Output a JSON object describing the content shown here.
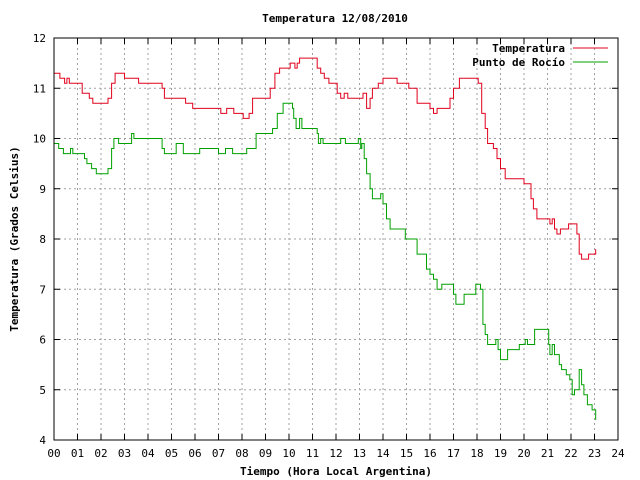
{
  "chart_data": {
    "type": "line",
    "title": "Temperatura 12/08/2010",
    "xlabel": "Tiempo (Hora Local Argentina)",
    "ylabel": "Temperatura (Grados Celsius)",
    "xlim": [
      0,
      24
    ],
    "ylim": [
      4,
      12
    ],
    "x_ticks": [
      "00",
      "01",
      "02",
      "03",
      "04",
      "05",
      "06",
      "07",
      "08",
      "09",
      "10",
      "11",
      "12",
      "13",
      "14",
      "15",
      "16",
      "17",
      "18",
      "19",
      "20",
      "21",
      "22",
      "23",
      "24"
    ],
    "y_ticks": [
      "4",
      "5",
      "6",
      "7",
      "8",
      "9",
      "10",
      "11",
      "12"
    ],
    "grid": true,
    "legend_position": "top-right",
    "colors": {
      "temperature": "#e0001b",
      "dew_point": "#00a000",
      "grid": "#a0a0a0"
    },
    "series": [
      {
        "name": "Temperatura",
        "points": [
          [
            0,
            11.3
          ],
          [
            0.15,
            11.3
          ],
          [
            0.25,
            11.2
          ],
          [
            0.35,
            11.2
          ],
          [
            0.45,
            11.1
          ],
          [
            0.55,
            11.2
          ],
          [
            0.65,
            11.1
          ],
          [
            1.0,
            11.1
          ],
          [
            1.1,
            11.1
          ],
          [
            1.2,
            10.9
          ],
          [
            1.35,
            10.9
          ],
          [
            1.5,
            10.8
          ],
          [
            1.65,
            10.7
          ],
          [
            2.2,
            10.7
          ],
          [
            2.3,
            10.8
          ],
          [
            2.45,
            11.1
          ],
          [
            2.6,
            11.3
          ],
          [
            2.8,
            11.3
          ],
          [
            3.0,
            11.2
          ],
          [
            3.3,
            11.2
          ],
          [
            3.6,
            11.1
          ],
          [
            4.0,
            11.1
          ],
          [
            4.5,
            11.1
          ],
          [
            4.6,
            11.0
          ],
          [
            4.7,
            10.8
          ],
          [
            5.0,
            10.8
          ],
          [
            5.4,
            10.8
          ],
          [
            5.6,
            10.7
          ],
          [
            5.9,
            10.6
          ],
          [
            6.3,
            10.6
          ],
          [
            6.6,
            10.6
          ],
          [
            6.8,
            10.6
          ],
          [
            7.0,
            10.6
          ],
          [
            7.1,
            10.5
          ],
          [
            7.25,
            10.5
          ],
          [
            7.35,
            10.6
          ],
          [
            7.55,
            10.6
          ],
          [
            7.65,
            10.5
          ],
          [
            7.9,
            10.5
          ],
          [
            8.05,
            10.4
          ],
          [
            8.15,
            10.4
          ],
          [
            8.3,
            10.5
          ],
          [
            8.45,
            10.8
          ],
          [
            8.8,
            10.8
          ],
          [
            9.05,
            10.8
          ],
          [
            9.2,
            11.0
          ],
          [
            9.4,
            11.3
          ],
          [
            9.6,
            11.4
          ],
          [
            9.85,
            11.4
          ],
          [
            10.05,
            11.5
          ],
          [
            10.15,
            11.5
          ],
          [
            10.25,
            11.4
          ],
          [
            10.35,
            11.5
          ],
          [
            10.45,
            11.6
          ],
          [
            10.7,
            11.6
          ],
          [
            11.0,
            11.6
          ],
          [
            11.2,
            11.4
          ],
          [
            11.35,
            11.3
          ],
          [
            11.5,
            11.2
          ],
          [
            11.7,
            11.1
          ],
          [
            11.95,
            11.1
          ],
          [
            12.05,
            10.9
          ],
          [
            12.2,
            10.8
          ],
          [
            12.35,
            10.9
          ],
          [
            12.5,
            10.8
          ],
          [
            12.8,
            10.8
          ],
          [
            13.05,
            10.8
          ],
          [
            13.15,
            10.9
          ],
          [
            13.3,
            10.6
          ],
          [
            13.45,
            10.8
          ],
          [
            13.55,
            11.0
          ],
          [
            13.8,
            11.1
          ],
          [
            14.0,
            11.2
          ],
          [
            14.45,
            11.2
          ],
          [
            14.6,
            11.1
          ],
          [
            14.9,
            11.1
          ],
          [
            15.1,
            11.0
          ],
          [
            15.3,
            11.0
          ],
          [
            15.45,
            10.7
          ],
          [
            15.9,
            10.7
          ],
          [
            16.0,
            10.6
          ],
          [
            16.15,
            10.5
          ],
          [
            16.3,
            10.6
          ],
          [
            16.7,
            10.6
          ],
          [
            16.85,
            10.8
          ],
          [
            17.0,
            11.0
          ],
          [
            17.15,
            11.0
          ],
          [
            17.25,
            11.2
          ],
          [
            17.9,
            11.2
          ],
          [
            18.05,
            11.1
          ],
          [
            18.2,
            10.5
          ],
          [
            18.35,
            10.2
          ],
          [
            18.45,
            9.9
          ],
          [
            18.7,
            9.8
          ],
          [
            18.85,
            9.6
          ],
          [
            19.0,
            9.4
          ],
          [
            19.2,
            9.2
          ],
          [
            19.9,
            9.2
          ],
          [
            20.0,
            9.1
          ],
          [
            20.15,
            9.1
          ],
          [
            20.3,
            8.8
          ],
          [
            20.4,
            8.6
          ],
          [
            20.55,
            8.4
          ],
          [
            20.8,
            8.4
          ],
          [
            21.0,
            8.4
          ],
          [
            21.1,
            8.3
          ],
          [
            21.2,
            8.4
          ],
          [
            21.3,
            8.2
          ],
          [
            21.4,
            8.1
          ],
          [
            21.55,
            8.2
          ],
          [
            21.9,
            8.3
          ],
          [
            22.1,
            8.3
          ],
          [
            22.25,
            8.1
          ],
          [
            22.35,
            7.7
          ],
          [
            22.45,
            7.6
          ],
          [
            22.55,
            7.6
          ],
          [
            22.75,
            7.7
          ],
          [
            23.05,
            7.8
          ]
        ]
      },
      {
        "name": "Punto de Rocío",
        "points": [
          [
            0,
            9.9
          ],
          [
            0.1,
            9.9
          ],
          [
            0.2,
            9.8
          ],
          [
            0.3,
            9.8
          ],
          [
            0.4,
            9.7
          ],
          [
            0.55,
            9.7
          ],
          [
            0.7,
            9.8
          ],
          [
            0.8,
            9.7
          ],
          [
            1.1,
            9.7
          ],
          [
            1.3,
            9.6
          ],
          [
            1.4,
            9.5
          ],
          [
            1.5,
            9.5
          ],
          [
            1.6,
            9.4
          ],
          [
            1.8,
            9.3
          ],
          [
            2.15,
            9.3
          ],
          [
            2.3,
            9.4
          ],
          [
            2.45,
            9.8
          ],
          [
            2.55,
            10.0
          ],
          [
            2.75,
            9.9
          ],
          [
            3.1,
            9.9
          ],
          [
            3.25,
            9.9
          ],
          [
            3.3,
            10.1
          ],
          [
            3.4,
            10.0
          ],
          [
            3.7,
            10.0
          ],
          [
            4.1,
            10.0
          ],
          [
            4.5,
            10.0
          ],
          [
            4.6,
            9.8
          ],
          [
            4.7,
            9.7
          ],
          [
            5.1,
            9.7
          ],
          [
            5.2,
            9.9
          ],
          [
            5.4,
            9.9
          ],
          [
            5.5,
            9.7
          ],
          [
            5.9,
            9.7
          ],
          [
            6.1,
            9.7
          ],
          [
            6.2,
            9.8
          ],
          [
            6.5,
            9.8
          ],
          [
            6.9,
            9.8
          ],
          [
            7.0,
            9.7
          ],
          [
            7.2,
            9.7
          ],
          [
            7.3,
            9.8
          ],
          [
            7.5,
            9.8
          ],
          [
            7.6,
            9.7
          ],
          [
            8.0,
            9.7
          ],
          [
            8.1,
            9.7
          ],
          [
            8.2,
            9.8
          ],
          [
            8.3,
            9.8
          ],
          [
            8.6,
            10.1
          ],
          [
            8.8,
            10.1
          ],
          [
            9.1,
            10.1
          ],
          [
            9.3,
            10.2
          ],
          [
            9.5,
            10.5
          ],
          [
            9.75,
            10.7
          ],
          [
            10.0,
            10.7
          ],
          [
            10.1,
            10.7
          ],
          [
            10.15,
            10.6
          ],
          [
            10.2,
            10.4
          ],
          [
            10.3,
            10.2
          ],
          [
            10.45,
            10.4
          ],
          [
            10.55,
            10.2
          ],
          [
            11.0,
            10.2
          ],
          [
            11.2,
            10.1
          ],
          [
            11.25,
            9.9
          ],
          [
            11.35,
            10.0
          ],
          [
            11.45,
            9.9
          ],
          [
            12.0,
            9.9
          ],
          [
            12.2,
            10.0
          ],
          [
            12.3,
            10.0
          ],
          [
            12.4,
            9.9
          ],
          [
            12.8,
            9.9
          ],
          [
            12.95,
            10.0
          ],
          [
            13.05,
            9.8
          ],
          [
            13.1,
            9.9
          ],
          [
            13.2,
            9.6
          ],
          [
            13.3,
            9.3
          ],
          [
            13.45,
            9.0
          ],
          [
            13.55,
            8.8
          ],
          [
            13.7,
            8.8
          ],
          [
            13.9,
            8.9
          ],
          [
            14.0,
            8.7
          ],
          [
            14.15,
            8.4
          ],
          [
            14.3,
            8.2
          ],
          [
            14.8,
            8.2
          ],
          [
            14.95,
            8.0
          ],
          [
            15.2,
            8.0
          ],
          [
            15.45,
            7.7
          ],
          [
            15.7,
            7.7
          ],
          [
            15.85,
            7.4
          ],
          [
            16.0,
            7.3
          ],
          [
            16.15,
            7.2
          ],
          [
            16.3,
            7.0
          ],
          [
            16.5,
            7.1
          ],
          [
            16.85,
            7.1
          ],
          [
            17.0,
            6.9
          ],
          [
            17.1,
            6.7
          ],
          [
            17.3,
            6.7
          ],
          [
            17.45,
            6.9
          ],
          [
            17.85,
            6.9
          ],
          [
            17.95,
            7.1
          ],
          [
            18.05,
            7.1
          ],
          [
            18.15,
            7.0
          ],
          [
            18.25,
            6.3
          ],
          [
            18.35,
            6.1
          ],
          [
            18.45,
            5.9
          ],
          [
            18.6,
            5.9
          ],
          [
            18.8,
            6.0
          ],
          [
            18.9,
            5.8
          ],
          [
            19.0,
            5.6
          ],
          [
            19.15,
            5.6
          ],
          [
            19.3,
            5.8
          ],
          [
            19.5,
            5.8
          ],
          [
            19.65,
            5.8
          ],
          [
            19.8,
            5.9
          ],
          [
            19.95,
            5.9
          ],
          [
            20.05,
            6.0
          ],
          [
            20.15,
            5.9
          ],
          [
            20.3,
            5.9
          ],
          [
            20.45,
            6.2
          ],
          [
            20.7,
            6.2
          ],
          [
            21.0,
            6.2
          ],
          [
            21.05,
            5.9
          ],
          [
            21.1,
            5.7
          ],
          [
            21.2,
            5.9
          ],
          [
            21.3,
            5.7
          ],
          [
            21.5,
            5.5
          ],
          [
            21.6,
            5.4
          ],
          [
            21.8,
            5.3
          ],
          [
            21.95,
            5.2
          ],
          [
            22.05,
            4.9
          ],
          [
            22.15,
            5.0
          ],
          [
            22.35,
            5.4
          ],
          [
            22.45,
            5.1
          ],
          [
            22.55,
            4.9
          ],
          [
            22.7,
            4.7
          ],
          [
            22.9,
            4.6
          ],
          [
            23.05,
            4.4
          ]
        ]
      }
    ]
  }
}
